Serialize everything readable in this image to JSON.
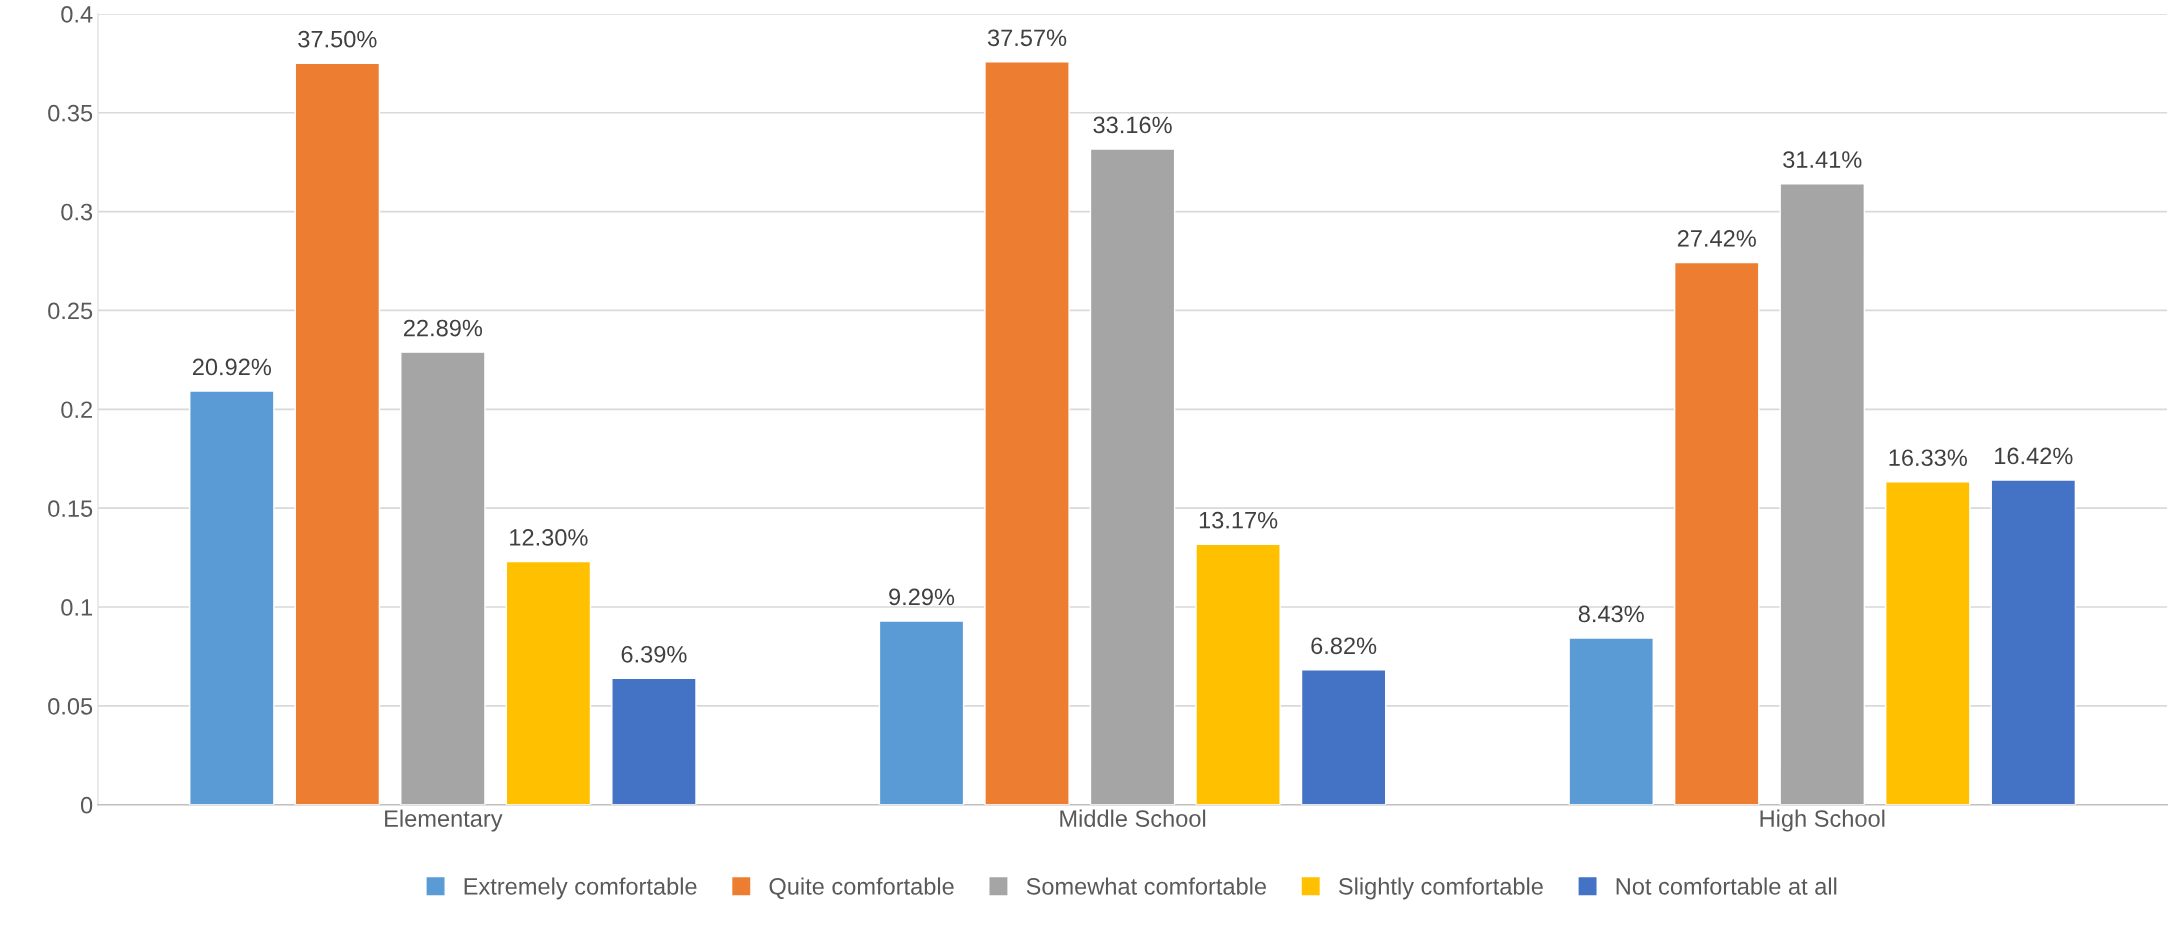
{
  "chart_data": {
    "type": "bar",
    "categories": [
      "Elementary",
      "Middle School",
      "High School"
    ],
    "series": [
      {
        "name": "Extremely comfortable",
        "color": "#5b9bd5",
        "values": [
          0.2092,
          0.0929,
          0.0843
        ],
        "value_labels": [
          "20.92%",
          "9.29%",
          "8.43%"
        ]
      },
      {
        "name": "Quite comfortable",
        "color": "#ed7d31",
        "values": [
          0.375,
          0.3757,
          0.2742
        ],
        "value_labels": [
          "37.50%",
          "37.57%",
          "27.42%"
        ]
      },
      {
        "name": "Somewhat comfortable",
        "color": "#a5a5a5",
        "values": [
          0.2289,
          0.3316,
          0.3141
        ],
        "value_labels": [
          "22.89%",
          "33.16%",
          "31.41%"
        ]
      },
      {
        "name": "Slightly comfortable",
        "color": "#ffc000",
        "values": [
          0.123,
          0.1317,
          0.1633
        ],
        "value_labels": [
          "12.30%",
          "13.17%",
          "16.33%"
        ]
      },
      {
        "name": "Not comfortable at all",
        "color": "#4472c4",
        "values": [
          0.0639,
          0.0682,
          0.1642
        ],
        "value_labels": [
          "6.39%",
          "6.82%",
          "16.42%"
        ]
      }
    ],
    "ylim": [
      0,
      0.4
    ],
    "yticks": [
      0,
      0.05,
      0.1,
      0.15,
      0.2,
      0.25,
      0.3,
      0.35,
      0.4
    ],
    "grid": "y",
    "legend": "bottom"
  }
}
